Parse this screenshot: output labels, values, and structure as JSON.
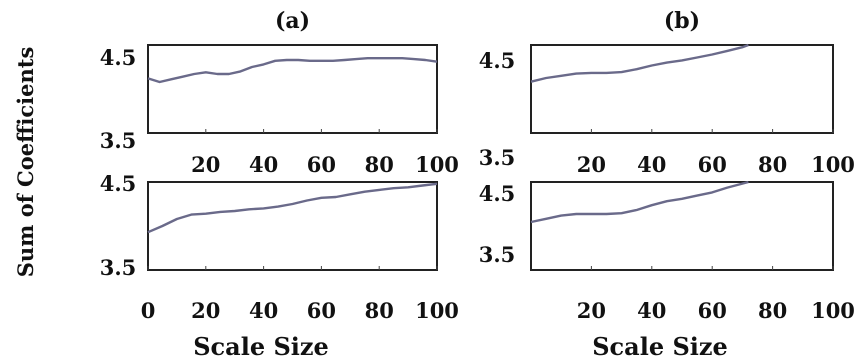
{
  "figure": {
    "ylabel": "Sum of Coefficients",
    "xlabel_left": "Scale Size",
    "xlabel_right": "Scale Size",
    "line_color": "#6a6a8a"
  },
  "chart_data": [
    {
      "type": "line",
      "title": "(a)",
      "xlabel": "",
      "ylabel": "",
      "xlim": [
        0,
        100
      ],
      "ylim": [
        3.5,
        4.5
      ],
      "xticks": [
        "20",
        "40",
        "60",
        "80",
        "100"
      ],
      "yticks": [
        "3.5",
        "4.5"
      ],
      "x": [
        0,
        4,
        8,
        12,
        16,
        20,
        24,
        28,
        32,
        36,
        40,
        44,
        48,
        52,
        56,
        60,
        64,
        68,
        72,
        76,
        80,
        84,
        88,
        92,
        96,
        100
      ],
      "y": [
        4.12,
        4.08,
        4.11,
        4.14,
        4.17,
        4.19,
        4.17,
        4.17,
        4.2,
        4.25,
        4.28,
        4.32,
        4.33,
        4.33,
        4.32,
        4.32,
        4.32,
        4.33,
        4.34,
        4.35,
        4.35,
        4.35,
        4.35,
        4.34,
        4.33,
        4.31
      ]
    },
    {
      "type": "line",
      "title": "(b)",
      "xlabel": "",
      "ylabel": "",
      "xlim": [
        0,
        100
      ],
      "ylim": [
        3.5,
        4.7
      ],
      "xticks": [
        "20",
        "40",
        "60",
        "80",
        "100"
      ],
      "yticks": [
        "3.5",
        "4.5"
      ],
      "x": [
        0,
        5,
        10,
        15,
        20,
        25,
        30,
        35,
        40,
        45,
        50,
        55,
        60,
        65,
        70,
        72
      ],
      "y": [
        4.2,
        4.25,
        4.28,
        4.31,
        4.32,
        4.32,
        4.33,
        4.37,
        4.42,
        4.46,
        4.49,
        4.53,
        4.57,
        4.62,
        4.67,
        4.7
      ]
    },
    {
      "type": "line",
      "title": "",
      "xlabel": "",
      "ylabel": "",
      "xlim": [
        0,
        100
      ],
      "ylim": [
        3.5,
        4.5
      ],
      "xticks": [
        "0",
        "20",
        "40",
        "60",
        "80",
        "100"
      ],
      "yticks": [
        "3.5",
        "4.5"
      ],
      "x": [
        0,
        5,
        10,
        15,
        20,
        25,
        30,
        35,
        40,
        45,
        50,
        55,
        60,
        65,
        70,
        75,
        80,
        85,
        90,
        95,
        100
      ],
      "y": [
        3.93,
        4.0,
        4.08,
        4.13,
        4.14,
        4.16,
        4.17,
        4.19,
        4.2,
        4.22,
        4.25,
        4.29,
        4.32,
        4.33,
        4.36,
        4.39,
        4.41,
        4.43,
        4.44,
        4.46,
        4.48
      ]
    },
    {
      "type": "line",
      "title": "",
      "xlabel": "",
      "ylabel": "",
      "xlim": [
        0,
        100
      ],
      "ylim": [
        3.5,
        4.6
      ],
      "xticks": [
        "20",
        "40",
        "60",
        "80",
        "100"
      ],
      "yticks": [
        "3.5",
        "4.5"
      ],
      "x": [
        0,
        5,
        10,
        15,
        20,
        25,
        30,
        35,
        40,
        45,
        50,
        55,
        60,
        65,
        70,
        72
      ],
      "y": [
        4.1,
        4.14,
        4.18,
        4.2,
        4.2,
        4.2,
        4.21,
        4.25,
        4.31,
        4.36,
        4.39,
        4.43,
        4.47,
        4.53,
        4.58,
        4.6
      ]
    }
  ]
}
